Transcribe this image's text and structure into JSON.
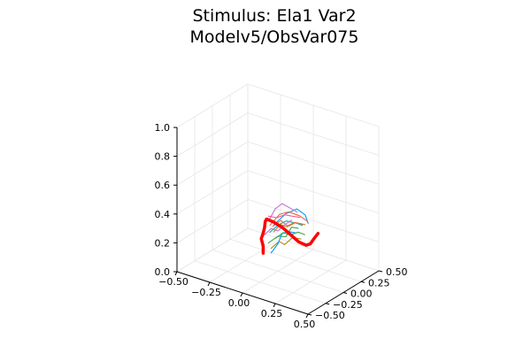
{
  "chart_data": {
    "type": "line",
    "projection": "3d",
    "title": [
      "Stimulus: Ela1 Var2",
      "Modelv5/ObsVar075"
    ],
    "xlabel": "",
    "ylabel": "",
    "zlabel": "",
    "xlim": [
      -0.5,
      0.5
    ],
    "ylim": [
      -0.5,
      0.5
    ],
    "zlim": [
      0,
      1
    ],
    "x_ticks": [
      -0.5,
      -0.25,
      0,
      0.25,
      0.5
    ],
    "x_tick_labels": [
      "−0.50",
      "−0.25",
      "0.00",
      "0.25",
      "0.50"
    ],
    "y_ticks": [
      -0.5,
      -0.25,
      0,
      0.25,
      0.5
    ],
    "y_tick_labels": [
      "−0.50",
      "−0.25",
      "0.00",
      "0.25",
      "0.50"
    ],
    "z_ticks": [
      0,
      0.2,
      0.4,
      0.6,
      0.8,
      1.0
    ],
    "z_tick_labels": [
      "0.0",
      "0.2",
      "0.4",
      "0.6",
      "0.8",
      "1.0"
    ],
    "grid": true,
    "legend": "none",
    "series_colors": [
      "#009AFA",
      "#E36F47",
      "#3EA44E",
      "#C371D2",
      "#AC8D18",
      "#00A9AD",
      "#ED5E93",
      "#C68225"
    ],
    "series": [
      {
        "values": [
          [
            -0.14,
            0.2,
            0.22
          ],
          [
            -0.1,
            0.3,
            0.28
          ],
          [
            -0.06,
            0.38,
            0.3
          ],
          [
            -0.04,
            0.46,
            0.24
          ],
          [
            -0.05,
            0.52,
            0.16
          ]
        ]
      },
      {
        "values": [
          [
            -0.18,
            0.22,
            0.2
          ],
          [
            -0.15,
            0.3,
            0.26
          ],
          [
            -0.1,
            0.34,
            0.28
          ],
          [
            -0.05,
            0.4,
            0.25
          ],
          [
            -0.02,
            0.46,
            0.2
          ]
        ]
      },
      {
        "values": [
          [
            -0.16,
            0.16,
            0.1
          ],
          [
            -0.12,
            0.22,
            0.14
          ],
          [
            -0.1,
            0.3,
            0.12
          ],
          [
            -0.08,
            0.34,
            0.18
          ],
          [
            -0.06,
            0.4,
            0.16
          ]
        ]
      },
      {
        "values": [
          [
            -0.2,
            0.24,
            0.22
          ],
          [
            -0.17,
            0.28,
            0.3
          ],
          [
            -0.13,
            0.3,
            0.34
          ],
          [
            -0.1,
            0.36,
            0.3
          ],
          [
            -0.08,
            0.42,
            0.26
          ]
        ]
      },
      {
        "values": [
          [
            -0.15,
            0.18,
            0.06
          ],
          [
            -0.12,
            0.24,
            0.1
          ],
          [
            -0.09,
            0.26,
            0.08
          ],
          [
            -0.06,
            0.32,
            0.12
          ],
          [
            -0.03,
            0.38,
            0.1
          ]
        ]
      },
      {
        "values": [
          [
            -0.17,
            0.2,
            0.16
          ],
          [
            -0.14,
            0.26,
            0.2
          ],
          [
            -0.11,
            0.32,
            0.22
          ],
          [
            -0.07,
            0.38,
            0.2
          ],
          [
            -0.04,
            0.42,
            0.18
          ]
        ]
      },
      {
        "values": [
          [
            -0.19,
            0.22,
            0.26
          ],
          [
            -0.16,
            0.28,
            0.24
          ],
          [
            -0.12,
            0.32,
            0.26
          ],
          [
            -0.09,
            0.38,
            0.24
          ],
          [
            -0.07,
            0.44,
            0.22
          ]
        ]
      },
      {
        "values": [
          [
            -0.13,
            0.18,
            0.18
          ],
          [
            -0.11,
            0.24,
            0.22
          ],
          [
            -0.08,
            0.28,
            0.2
          ],
          [
            -0.05,
            0.34,
            0.22
          ],
          [
            -0.01,
            0.4,
            0.2
          ]
        ]
      },
      {
        "values": [
          [
            -0.16,
            0.2,
            0.02
          ],
          [
            -0.13,
            0.24,
            0.08
          ],
          [
            -0.12,
            0.28,
            0.14
          ],
          [
            -0.09,
            0.3,
            0.16
          ],
          [
            -0.06,
            0.36,
            0.14
          ]
        ]
      },
      {
        "values": [
          [
            -0.18,
            0.26,
            0.18
          ],
          [
            -0.14,
            0.3,
            0.22
          ],
          [
            -0.11,
            0.34,
            0.18
          ],
          [
            -0.08,
            0.38,
            0.2
          ],
          [
            -0.05,
            0.44,
            0.18
          ]
        ]
      },
      {
        "values": [
          [
            -0.14,
            0.22,
            0.12
          ],
          [
            -0.1,
            0.26,
            0.16
          ],
          [
            -0.07,
            0.3,
            0.14
          ],
          [
            -0.03,
            0.34,
            0.16
          ],
          [
            0.0,
            0.38,
            0.14
          ]
        ]
      },
      {
        "values": [
          [
            -0.2,
            0.18,
            0.14
          ],
          [
            -0.17,
            0.22,
            0.18
          ],
          [
            -0.14,
            0.26,
            0.16
          ],
          [
            -0.11,
            0.3,
            0.2
          ],
          [
            -0.09,
            0.36,
            0.22
          ]
        ]
      }
    ],
    "highlight_path": {
      "color": "#ff0000",
      "values": [
        [
          -0.22,
          0.2,
          0.0
        ],
        [
          -0.22,
          0.2,
          0.05
        ],
        [
          -0.23,
          0.19,
          0.1
        ],
        [
          -0.22,
          0.2,
          0.14
        ],
        [
          -0.21,
          0.2,
          0.18
        ],
        [
          -0.21,
          0.21,
          0.22
        ],
        [
          -0.2,
          0.21,
          0.24
        ],
        [
          -0.15,
          0.22,
          0.23
        ],
        [
          -0.08,
          0.22,
          0.21
        ],
        [
          -0.02,
          0.22,
          0.18
        ],
        [
          0.03,
          0.24,
          0.14
        ],
        [
          0.07,
          0.27,
          0.12
        ],
        [
          0.08,
          0.31,
          0.12
        ],
        [
          0.08,
          0.36,
          0.14
        ],
        [
          0.08,
          0.42,
          0.16
        ]
      ]
    }
  }
}
